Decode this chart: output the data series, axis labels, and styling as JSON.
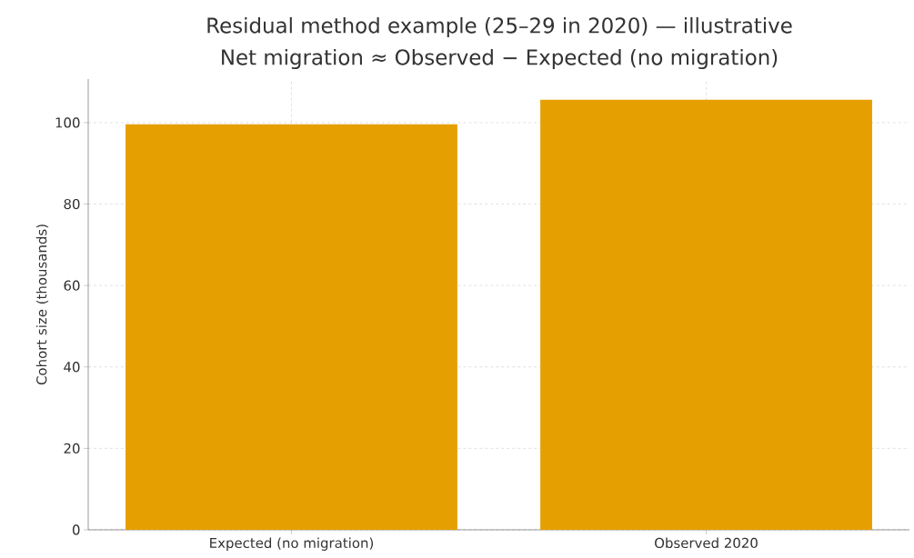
{
  "chart_data": {
    "type": "bar",
    "title": "Residual method example (25–29 in 2020) — illustrative",
    "subtitle": "Net migration ≈ Observed − Expected (no migration)",
    "ylabel": "Cohort size (thousands)",
    "categories": [
      "Expected (no migration)",
      "Observed 2020"
    ],
    "values": [
      99.6,
      105.6
    ],
    "color": "#e69f00",
    "ylim": [
      0,
      110.7
    ],
    "yticks": [
      0,
      20,
      40,
      60,
      80,
      100
    ],
    "grid": true
  }
}
